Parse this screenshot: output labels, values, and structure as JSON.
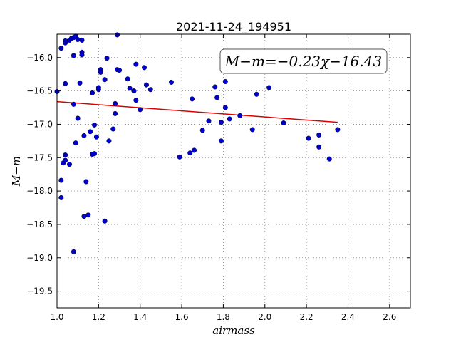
{
  "chart_data": {
    "type": "scatter",
    "title": "2021-11-24_194951",
    "xlabel": "airmass",
    "ylabel": "M−m",
    "xlim": [
      1.0,
      2.7
    ],
    "ylim": [
      -19.75,
      -15.65
    ],
    "y_inverted": true,
    "grid": true,
    "x_ticks": [
      1.0,
      1.2,
      1.4,
      1.6,
      1.8,
      2.0,
      2.2,
      2.4,
      2.6
    ],
    "x_tick_labels": [
      "1.0",
      "1.2",
      "1.4",
      "1.6",
      "1.8",
      "2.0",
      "2.2",
      "2.4",
      "2.6"
    ],
    "y_ticks": [
      -16.0,
      -16.5,
      -17.0,
      -17.5,
      -18.0,
      -18.5,
      -19.0,
      -19.5
    ],
    "y_tick_labels": [
      "−16.0",
      "−16.5",
      "−17.0",
      "−17.5",
      "−18.0",
      "−18.5",
      "−19.0",
      "−19.5"
    ],
    "annotation": "M−m=−0.23χ−16.43",
    "colors": {
      "points": "#0000cc",
      "fit": "#dd0000",
      "grid": "#888888"
    },
    "fit_line": {
      "slope": -0.23,
      "intercept": -16.43,
      "x_range": [
        1.0,
        2.35
      ]
    },
    "points": [
      [
        1.0,
        -16.51
      ],
      [
        1.02,
        -15.86
      ],
      [
        1.04,
        -15.78
      ],
      [
        1.04,
        -15.75
      ],
      [
        1.06,
        -15.74
      ],
      [
        1.07,
        -15.71
      ],
      [
        1.08,
        -15.7
      ],
      [
        1.09,
        -15.68
      ],
      [
        1.1,
        -15.73
      ],
      [
        1.12,
        -15.74
      ],
      [
        1.08,
        -15.97
      ],
      [
        1.12,
        -15.92
      ],
      [
        1.12,
        -15.96
      ],
      [
        1.04,
        -16.39
      ],
      [
        1.08,
        -16.7
      ],
      [
        1.11,
        -16.38
      ],
      [
        1.1,
        -16.91
      ],
      [
        1.09,
        -17.28
      ],
      [
        1.03,
        -17.58
      ],
      [
        1.04,
        -17.46
      ],
      [
        1.04,
        -17.54
      ],
      [
        1.06,
        -17.6
      ],
      [
        1.02,
        -17.84
      ],
      [
        1.02,
        -18.1
      ],
      [
        1.08,
        -18.91
      ],
      [
        1.13,
        -18.38
      ],
      [
        1.15,
        -18.36
      ],
      [
        1.13,
        -17.17
      ],
      [
        1.14,
        -17.86
      ],
      [
        1.16,
        -17.11
      ],
      [
        1.17,
        -17.45
      ],
      [
        1.18,
        -17.44
      ],
      [
        1.18,
        -17.01
      ],
      [
        1.19,
        -17.19
      ],
      [
        1.17,
        -16.53
      ],
      [
        1.2,
        -16.48
      ],
      [
        1.2,
        -16.45
      ],
      [
        1.21,
        -16.18
      ],
      [
        1.21,
        -16.22
      ],
      [
        1.23,
        -16.33
      ],
      [
        1.24,
        -16.01
      ],
      [
        1.25,
        -17.25
      ],
      [
        1.27,
        -17.07
      ],
      [
        1.28,
        -16.69
      ],
      [
        1.28,
        -16.84
      ],
      [
        1.29,
        -16.18
      ],
      [
        1.3,
        -16.19
      ],
      [
        1.29,
        -15.66
      ],
      [
        1.23,
        -18.45
      ],
      [
        1.34,
        -16.32
      ],
      [
        1.35,
        -16.46
      ],
      [
        1.37,
        -16.5
      ],
      [
        1.38,
        -16.1
      ],
      [
        1.38,
        -16.64
      ],
      [
        1.4,
        -16.78
      ],
      [
        1.42,
        -16.15
      ],
      [
        1.43,
        -16.41
      ],
      [
        1.45,
        -16.48
      ],
      [
        1.55,
        -16.37
      ],
      [
        1.59,
        -17.49
      ],
      [
        1.64,
        -17.43
      ],
      [
        1.66,
        -17.39
      ],
      [
        1.65,
        -16.62
      ],
      [
        1.7,
        -17.09
      ],
      [
        1.73,
        -16.95
      ],
      [
        1.76,
        -16.44
      ],
      [
        1.77,
        -16.6
      ],
      [
        1.79,
        -16.97
      ],
      [
        1.79,
        -17.25
      ],
      [
        1.81,
        -16.36
      ],
      [
        1.81,
        -16.75
      ],
      [
        1.83,
        -16.92
      ],
      [
        1.88,
        -16.87
      ],
      [
        1.94,
        -17.08
      ],
      [
        1.96,
        -16.55
      ],
      [
        2.02,
        -16.45
      ],
      [
        2.09,
        -16.98
      ],
      [
        2.21,
        -17.21
      ],
      [
        2.26,
        -17.34
      ],
      [
        2.26,
        -17.16
      ],
      [
        2.31,
        -17.52
      ],
      [
        2.35,
        -17.08
      ]
    ]
  }
}
